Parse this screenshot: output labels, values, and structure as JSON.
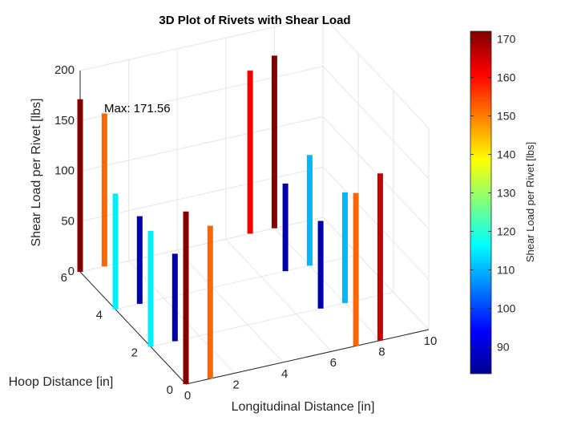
{
  "chart_data": {
    "type": "bar3d",
    "title": "3D Plot of Rivets with Shear Load",
    "xlabel": "Longitudinal Distance [in]",
    "ylabel": "Hoop Distance [in]",
    "zlabel": "Shear Load per Rivet [lbs]",
    "xlim": [
      0,
      10
    ],
    "ylim": [
      0,
      6
    ],
    "zlim": [
      0,
      200
    ],
    "x_ticks": [
      "0",
      "2",
      "4",
      "6",
      "8",
      "10"
    ],
    "y_ticks": [
      "0",
      "2",
      "4",
      "6"
    ],
    "z_ticks": [
      "0",
      "50",
      "100",
      "150",
      "200"
    ],
    "colorbar": {
      "label": "Shear Load per Rivet [lbs]",
      "range": [
        83,
        172
      ],
      "ticks": [
        "90",
        "100",
        "110",
        "120",
        "130",
        "140",
        "150",
        "160",
        "170"
      ],
      "colormap": "jet"
    },
    "annotation": "Max: 171.56",
    "grid": true,
    "rivets": [
      {
        "x": 0,
        "y": 6,
        "load": 171.56
      },
      {
        "x": 0,
        "y": 4,
        "load": 115
      },
      {
        "x": 0,
        "y": 2,
        "load": 115
      },
      {
        "x": 0,
        "y": 0,
        "load": 171.5
      },
      {
        "x": 1,
        "y": 6,
        "load": 152
      },
      {
        "x": 1,
        "y": 4,
        "load": 87
      },
      {
        "x": 1,
        "y": 2,
        "load": 87
      },
      {
        "x": 1,
        "y": 0,
        "load": 152
      },
      {
        "x": 7,
        "y": 6,
        "load": 162
      },
      {
        "x": 7,
        "y": 4,
        "load": 87
      },
      {
        "x": 7,
        "y": 2,
        "load": 87
      },
      {
        "x": 7,
        "y": 0,
        "load": 152
      },
      {
        "x": 8,
        "y": 6,
        "load": 171.5
      },
      {
        "x": 8,
        "y": 4,
        "load": 110
      },
      {
        "x": 8,
        "y": 2,
        "load": 110
      },
      {
        "x": 8,
        "y": 0,
        "load": 166
      }
    ]
  }
}
